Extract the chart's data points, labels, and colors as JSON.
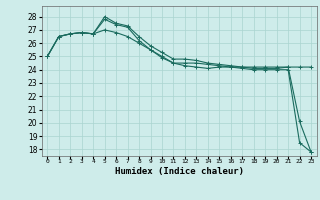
{
  "xlabel": "Humidex (Indice chaleur)",
  "xlim": [
    -0.5,
    23.5
  ],
  "ylim": [
    17.5,
    28.8
  ],
  "yticks": [
    18,
    19,
    20,
    21,
    22,
    23,
    24,
    25,
    26,
    27,
    28
  ],
  "bg_color": "#ceecea",
  "grid_color": "#aad4d0",
  "line_color": "#1a6b5e",
  "line1_y": [
    25.0,
    26.5,
    26.7,
    26.8,
    26.7,
    28.0,
    27.5,
    27.3,
    26.5,
    25.8,
    25.3,
    24.8,
    24.8,
    24.7,
    24.5,
    24.4,
    24.3,
    24.2,
    24.1,
    24.1,
    24.1,
    24.2,
    20.1,
    17.8
  ],
  "line2_y": [
    25.0,
    26.5,
    26.7,
    26.8,
    26.7,
    27.0,
    26.8,
    26.5,
    26.0,
    25.5,
    25.0,
    24.5,
    24.3,
    24.2,
    24.1,
    24.2,
    24.2,
    24.2,
    24.2,
    24.2,
    24.2,
    24.2,
    24.2,
    24.2
  ],
  "line3_y": [
    25.0,
    26.5,
    26.7,
    26.8,
    26.7,
    27.8,
    27.4,
    27.2,
    26.2,
    25.5,
    24.9,
    24.5,
    24.5,
    24.5,
    24.4,
    24.3,
    24.2,
    24.1,
    24.0,
    24.0,
    24.0,
    24.0,
    18.5,
    17.8
  ]
}
